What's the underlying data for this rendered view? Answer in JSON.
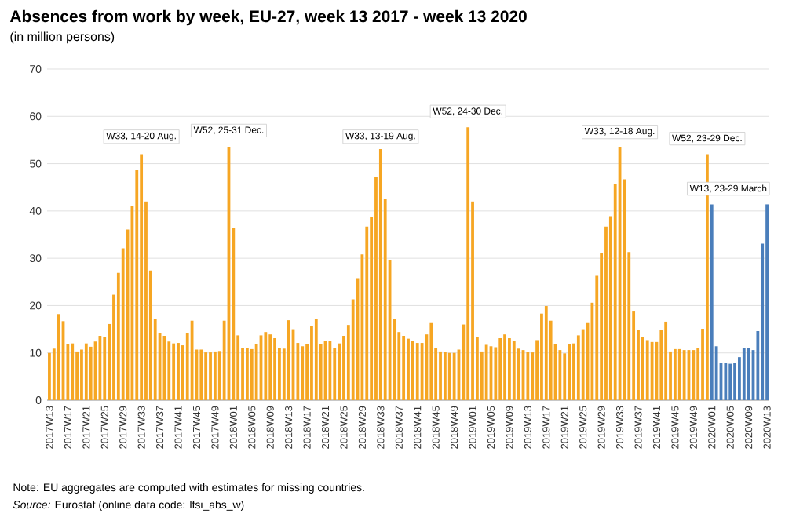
{
  "chart_data": {
    "type": "bar",
    "title": "Absences from work by week, EU-27, week 13 2017 - week 13 2020",
    "subtitle": "(in million persons)",
    "categories": [
      "2017W13",
      null,
      null,
      null,
      "2017W17",
      null,
      null,
      null,
      "2017W21",
      null,
      null,
      null,
      "2017W25",
      null,
      null,
      null,
      "2017W29",
      null,
      null,
      null,
      "2017W33",
      null,
      null,
      null,
      "2017W37",
      null,
      null,
      null,
      "2017W41",
      null,
      null,
      null,
      "2017W45",
      null,
      null,
      null,
      "2017W49",
      null,
      null,
      null,
      "2018W01",
      null,
      null,
      null,
      "2018W05",
      null,
      null,
      null,
      "2018W09",
      null,
      null,
      null,
      "2018W13",
      null,
      null,
      null,
      "2018W17",
      null,
      null,
      null,
      "2018W21",
      null,
      null,
      null,
      "2018W25",
      null,
      null,
      null,
      "2018W29",
      null,
      null,
      null,
      "2018W33",
      null,
      null,
      null,
      "2018W37",
      null,
      null,
      null,
      "2018W41",
      null,
      null,
      null,
      "2018W45",
      null,
      null,
      null,
      "2018W49",
      null,
      null,
      null,
      "2019W01",
      null,
      null,
      null,
      "2019W05",
      null,
      null,
      null,
      "2019W09",
      null,
      null,
      null,
      "2019W13",
      null,
      null,
      null,
      "2019W17",
      null,
      null,
      null,
      "2019W21",
      null,
      null,
      null,
      "2019W25",
      null,
      null,
      null,
      "2019W29",
      null,
      null,
      null,
      "2019W33",
      null,
      null,
      null,
      "2019W37",
      null,
      null,
      null,
      "2019W41",
      null,
      null,
      null,
      "2019W45",
      null,
      null,
      null,
      "2019W49",
      null,
      null,
      null,
      "2020W01",
      null,
      null,
      null,
      "2020W05",
      null,
      null,
      null,
      "2020W09",
      null,
      null,
      null,
      "2020W13"
    ],
    "values": [
      10.0,
      10.9,
      18.2,
      16.7,
      11.8,
      12.0,
      10.3,
      10.7,
      12.0,
      11.3,
      12.4,
      13.6,
      13.4,
      16.1,
      22.3,
      26.9,
      32.1,
      36.1,
      41.1,
      48.6,
      52.0,
      42.0,
      27.4,
      17.2,
      14.1,
      13.6,
      12.4,
      12.0,
      12.1,
      11.6,
      14.2,
      16.8,
      10.7,
      10.7,
      10.1,
      10.1,
      10.3,
      10.4,
      16.8,
      53.6,
      36.4,
      13.7,
      11.1,
      11.1,
      10.8,
      11.8,
      13.7,
      14.4,
      13.9,
      13.1,
      11.0,
      10.9,
      16.9,
      15.0,
      12.1,
      11.4,
      11.9,
      15.6,
      17.2,
      11.8,
      12.6,
      12.6,
      11.0,
      12.0,
      13.6,
      15.9,
      21.3,
      25.8,
      30.8,
      36.7,
      38.7,
      47.1,
      53.1,
      42.6,
      29.7,
      17.1,
      14.4,
      13.6,
      13.0,
      12.6,
      12.1,
      12.1,
      13.9,
      16.3,
      11.0,
      10.3,
      10.2,
      10.0,
      10.0,
      10.7,
      16.0,
      57.7,
      42.0,
      13.3,
      10.3,
      11.7,
      11.4,
      11.2,
      13.1,
      13.9,
      13.1,
      12.6,
      10.9,
      10.6,
      10.2,
      10.1,
      12.7,
      18.3,
      19.9,
      16.8,
      11.9,
      10.6,
      9.9,
      11.9,
      12.0,
      13.7,
      15.0,
      16.3,
      20.6,
      26.3,
      31.0,
      36.7,
      38.9,
      45.8,
      53.6,
      46.7,
      31.3,
      18.9,
      14.8,
      13.3,
      12.7,
      12.3,
      12.3,
      14.9,
      16.6,
      10.3,
      10.8,
      10.8,
      10.6,
      10.6,
      10.6,
      11.0,
      15.1,
      52.0,
      41.4,
      11.4,
      7.8,
      7.9,
      7.7,
      7.9,
      9.1,
      11.0,
      11.1,
      10.6,
      14.6,
      33.1,
      41.4
    ],
    "colors": [
      "#f6a623",
      "#f6a623",
      "#f6a623",
      "#f6a623",
      "#f6a623",
      "#f6a623",
      "#f6a623",
      "#f6a623",
      "#f6a623",
      "#f6a623",
      "#f6a623",
      "#f6a623",
      "#f6a623",
      "#f6a623",
      "#f6a623",
      "#f6a623",
      "#f6a623",
      "#f6a623",
      "#f6a623",
      "#f6a623",
      "#f6a623",
      "#f6a623",
      "#f6a623",
      "#f6a623",
      "#f6a623",
      "#f6a623",
      "#f6a623",
      "#f6a623",
      "#f6a623",
      "#f6a623",
      "#f6a623",
      "#f6a623",
      "#f6a623",
      "#f6a623",
      "#f6a623",
      "#f6a623",
      "#f6a623",
      "#f6a623",
      "#f6a623",
      "#f6a623",
      "#f6a623",
      "#f6a623",
      "#f6a623",
      "#f6a623",
      "#f6a623",
      "#f6a623",
      "#f6a623",
      "#f6a623",
      "#f6a623",
      "#f6a623",
      "#f6a623",
      "#f6a623",
      "#f6a623",
      "#f6a623",
      "#f6a623",
      "#f6a623",
      "#f6a623",
      "#f6a623",
      "#f6a623",
      "#f6a623",
      "#f6a623",
      "#f6a623",
      "#f6a623",
      "#f6a623",
      "#f6a623",
      "#f6a623",
      "#f6a623",
      "#f6a623",
      "#f6a623",
      "#f6a623",
      "#f6a623",
      "#f6a623",
      "#f6a623",
      "#f6a623",
      "#f6a623",
      "#f6a623",
      "#f6a623",
      "#f6a623",
      "#f6a623",
      "#f6a623",
      "#f6a623",
      "#f6a623",
      "#f6a623",
      "#f6a623",
      "#f6a623",
      "#f6a623",
      "#f6a623",
      "#f6a623",
      "#f6a623",
      "#f6a623",
      "#f6a623",
      "#f6a623",
      "#f6a623",
      "#f6a623",
      "#f6a623",
      "#f6a623",
      "#f6a623",
      "#f6a623",
      "#f6a623",
      "#f6a623",
      "#f6a623",
      "#f6a623",
      "#f6a623",
      "#f6a623",
      "#f6a623",
      "#f6a623",
      "#f6a623",
      "#f6a623",
      "#f6a623",
      "#f6a623",
      "#f6a623",
      "#f6a623",
      "#f6a623",
      "#f6a623",
      "#f6a623",
      "#f6a623",
      "#f6a623",
      "#f6a623",
      "#f6a623",
      "#f6a623",
      "#f6a623",
      "#f6a623",
      "#f6a623",
      "#f6a623",
      "#f6a623",
      "#f6a623",
      "#f6a623",
      "#f6a623",
      "#f6a623",
      "#f6a623",
      "#f6a623",
      "#f6a623",
      "#f6a623",
      "#f6a623",
      "#f6a623",
      "#f6a623",
      "#f6a623",
      "#f6a623",
      "#f6a623",
      "#f6a623",
      "#f6a623",
      "#f6a623",
      "#f6a623",
      "#f6a623",
      "#4a7ebb",
      "#4a7ebb",
      "#4a7ebb",
      "#4a7ebb",
      "#4a7ebb",
      "#4a7ebb",
      "#4a7ebb",
      "#4a7ebb",
      "#4a7ebb",
      "#4a7ebb",
      "#4a7ebb",
      "#4a7ebb",
      "#4a7ebb"
    ],
    "ylim": [
      0,
      70
    ],
    "yticks": [
      0,
      10,
      20,
      30,
      40,
      50,
      60,
      70
    ],
    "grid": "y",
    "annotations": [
      "W33, 14-20 Aug.",
      "W52, 25-31 Dec.",
      "W33, 13-19 Aug.",
      "W52, 24-30 Dec.",
      "W33, 12-18 Aug.",
      "W52, 23-29 Dec.",
      "W13, 23-29 March",
      "Note: EU aggregates are computed with estimates for missing countries.",
      "*Source:* Eurostat (online data code: lfsi_abs_w)"
    ]
  }
}
